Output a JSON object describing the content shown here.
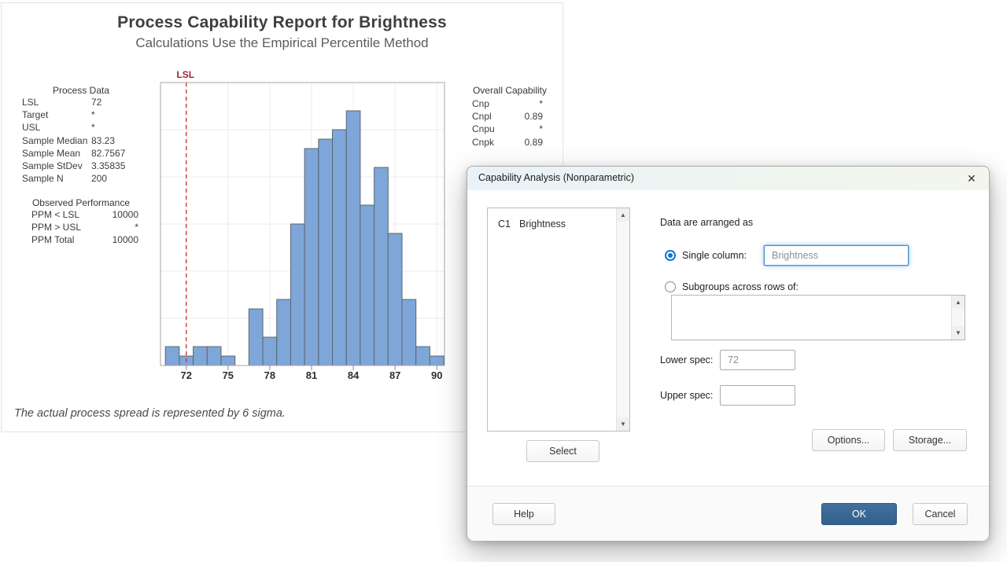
{
  "report": {
    "title": "Process Capability Report for Brightness",
    "subtitle": "Calculations Use the Empirical Percentile Method",
    "process_data": {
      "heading": "Process Data",
      "rows": [
        [
          "LSL",
          "72"
        ],
        [
          "Target",
          "*"
        ],
        [
          "USL",
          "*"
        ],
        [
          "Sample Median",
          "83.23"
        ],
        [
          "Sample Mean",
          "82.7567"
        ],
        [
          "Sample StDev",
          "3.35835"
        ],
        [
          "Sample N",
          "200"
        ]
      ]
    },
    "observed_performance": {
      "heading": "Observed Performance",
      "rows": [
        [
          "PPM < LSL",
          "10000"
        ],
        [
          "PPM > USL",
          "*"
        ],
        [
          "PPM Total",
          "10000"
        ]
      ]
    },
    "overall_capability": {
      "heading": "Overall Capability",
      "rows": [
        [
          "Cnp",
          "*"
        ],
        [
          "Cnpl",
          "0.89"
        ],
        [
          "Cnpu",
          "*"
        ],
        [
          "Cnpk",
          "0.89"
        ]
      ]
    },
    "footnote": "The actual process spread is represented by 6 sigma."
  },
  "chart_data": {
    "type": "bar",
    "subtype": "histogram",
    "title": "Process Capability Report for Brightness",
    "subtitle": "Calculations Use the Empirical Percentile Method",
    "xlabel": "",
    "ylabel": "",
    "bin_width": 1,
    "bin_centers": [
      71,
      72,
      73,
      74,
      75,
      76,
      77,
      78,
      79,
      80,
      81,
      82,
      83,
      84,
      85,
      86,
      87,
      88,
      89,
      90
    ],
    "counts": [
      2,
      1,
      2,
      2,
      1,
      0,
      6,
      3,
      7,
      15,
      23,
      24,
      25,
      27,
      17,
      21,
      14,
      7,
      2,
      1
    ],
    "x_ticks": [
      "72",
      "75",
      "78",
      "81",
      "84",
      "87",
      "90"
    ],
    "x_tick_values": [
      72,
      75,
      78,
      81,
      84,
      87,
      90
    ],
    "xlim": [
      70.15,
      90.55
    ],
    "ylim": [
      0,
      30
    ],
    "y_gridline_step": 5,
    "y_axis_labels": "none",
    "grid": true,
    "legend": "none",
    "reference_lines": [
      {
        "label": "LSL",
        "x": 72,
        "style": "dashed"
      }
    ],
    "colors": {
      "bar_fill": "#7EA6D8",
      "bar_stroke": "#5A6673",
      "gridline": "#ececec",
      "plot_border": "#a6a6a6",
      "tick": "#8a8a8a",
      "lsl_line": "#CE3A33",
      "lsl_label": "#A8232F"
    }
  },
  "dialog": {
    "title": "Capability Analysis (Nonparametric)",
    "close_glyph": "✕",
    "variables_list": [
      {
        "column": "C1",
        "name": "Brightness"
      }
    ],
    "data_arranged_label": "Data are arranged as",
    "single_column": {
      "label": "Single column:",
      "value": "Brightness",
      "selected": true
    },
    "subgroups": {
      "label": "Subgroups across rows of:",
      "value": "",
      "selected": false
    },
    "lower_spec": {
      "label": "Lower spec:",
      "value": "72"
    },
    "upper_spec": {
      "label": "Upper spec:",
      "value": ""
    },
    "buttons": {
      "select": "Select",
      "options": "Options...",
      "storage": "Storage...",
      "help": "Help",
      "ok": "OK",
      "cancel": "Cancel"
    },
    "scroll_up_glyph": "▲",
    "scroll_down_glyph": "▼",
    "accent_color": "#33608d"
  }
}
